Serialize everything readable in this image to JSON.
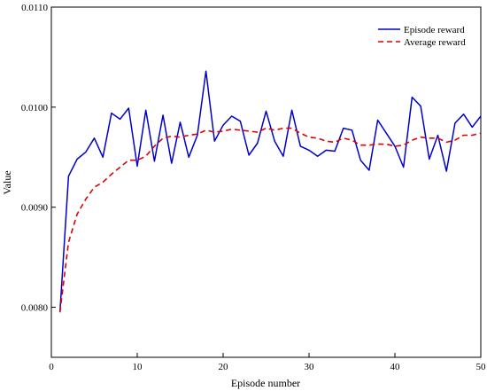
{
  "chart_data": {
    "type": "line",
    "xlabel": "Episode number",
    "ylabel": "Value",
    "xlim": [
      0,
      50
    ],
    "ylim": [
      0.0075,
      0.011
    ],
    "xticks": [
      "0",
      "10",
      "20",
      "30",
      "40",
      "50"
    ],
    "xtick_values": [
      0,
      10,
      20,
      30,
      40,
      50
    ],
    "yticks": [
      "0.0080",
      "0.0090",
      "0.0100",
      "0.0110"
    ],
    "ytick_values": [
      0.008,
      0.009,
      0.01,
      0.011
    ],
    "grid": false,
    "legend_position": "top-right",
    "x": [
      1,
      2,
      3,
      4,
      5,
      6,
      7,
      8,
      9,
      10,
      11,
      12,
      13,
      14,
      15,
      16,
      17,
      18,
      19,
      20,
      21,
      22,
      23,
      24,
      25,
      26,
      27,
      28,
      29,
      30,
      31,
      32,
      33,
      34,
      35,
      36,
      37,
      38,
      39,
      40,
      41,
      42,
      43,
      44,
      45,
      46,
      47,
      48,
      49,
      50
    ],
    "series": [
      {
        "name": "Episode reward",
        "color": "#0000cc",
        "style": "solid",
        "values": [
          0.00795,
          0.00931,
          0.00948,
          0.00955,
          0.00969,
          0.0095,
          0.00994,
          0.00988,
          0.00999,
          0.00941,
          0.00997,
          0.00946,
          0.00992,
          0.00944,
          0.00985,
          0.0095,
          0.00972,
          0.01036,
          0.00966,
          0.00982,
          0.00991,
          0.00986,
          0.00952,
          0.00964,
          0.00996,
          0.00966,
          0.00951,
          0.00997,
          0.00961,
          0.00957,
          0.00951,
          0.00957,
          0.00956,
          0.00979,
          0.00977,
          0.00947,
          0.00937,
          0.00987,
          0.00974,
          0.00961,
          0.0094,
          0.0101,
          0.01001,
          0.00948,
          0.00972,
          0.00936,
          0.00984,
          0.00993,
          0.0098,
          0.00991
        ]
      },
      {
        "name": "Average reward",
        "color": "#e00000",
        "style": "dashed",
        "values": [
          0.00795,
          0.00865,
          0.00893,
          0.00908,
          0.0092,
          0.00925,
          0.00933,
          0.0094,
          0.00947,
          0.00947,
          0.00951,
          0.00961,
          0.00969,
          0.00971,
          0.0097,
          0.00972,
          0.00973,
          0.00977,
          0.00975,
          0.00976,
          0.00978,
          0.00977,
          0.00976,
          0.00975,
          0.00979,
          0.00977,
          0.00979,
          0.00979,
          0.00974,
          0.0097,
          0.00969,
          0.00966,
          0.00965,
          0.00969,
          0.00967,
          0.00962,
          0.00962,
          0.00963,
          0.00963,
          0.00961,
          0.00962,
          0.00967,
          0.0097,
          0.00969,
          0.00969,
          0.00965,
          0.00967,
          0.00972,
          0.00972,
          0.00974
        ]
      }
    ]
  }
}
